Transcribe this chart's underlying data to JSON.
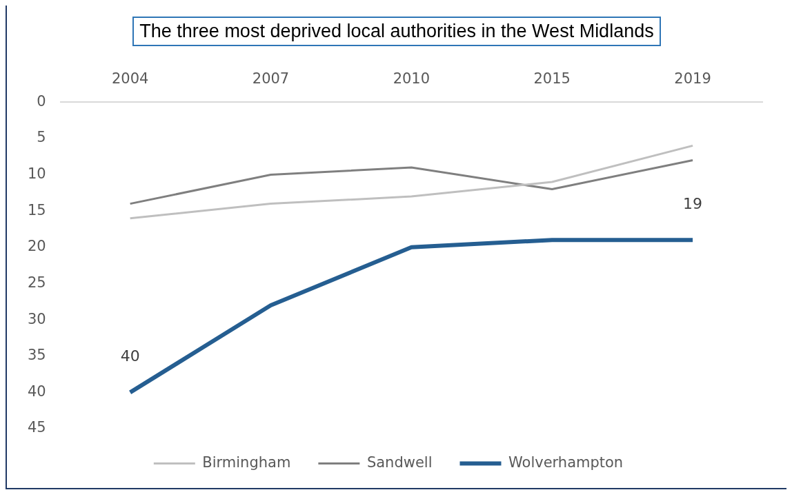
{
  "chart_data": {
    "type": "line",
    "title": "The three most deprived local authorities in the West Midlands",
    "categories": [
      "2004",
      "2007",
      "2010",
      "2015",
      "2019"
    ],
    "series": [
      {
        "name": "Birmingham",
        "color": "#bfbfbf",
        "values": [
          16,
          14,
          13,
          11,
          6
        ]
      },
      {
        "name": "Sandwell",
        "color": "#7f7f7f",
        "values": [
          14,
          10,
          9,
          12,
          8
        ]
      },
      {
        "name": "Wolverhampton",
        "color": "#255e91",
        "values": [
          40,
          28,
          20,
          19,
          19
        ],
        "value_labels": [
          "40",
          null,
          null,
          null,
          "19"
        ]
      }
    ],
    "ylim": [
      45,
      0
    ],
    "yticks": [
      0,
      5,
      10,
      15,
      20,
      25,
      30,
      35,
      40,
      45
    ],
    "grid": false,
    "legend": "bottom",
    "marker": "none",
    "line_style": "solid"
  }
}
